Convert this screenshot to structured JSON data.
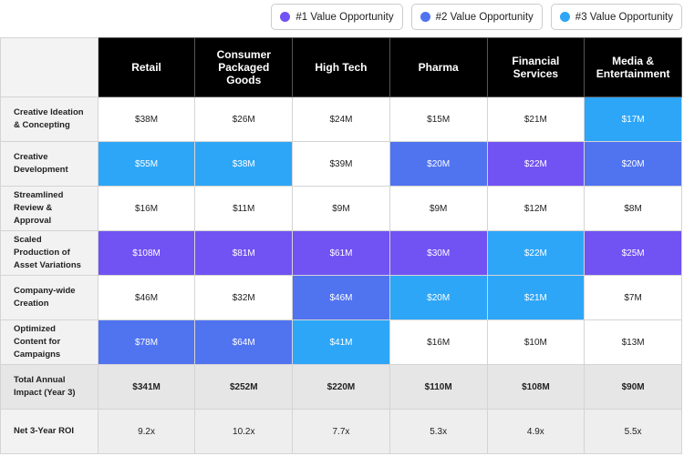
{
  "legend": [
    {
      "label": "#1 Value Opportunity",
      "color": "#7152f3"
    },
    {
      "label": "#2 Value Opportunity",
      "color": "#5073f0"
    },
    {
      "label": "#3 Value Opportunity",
      "color": "#2ea6f8"
    }
  ],
  "table": {
    "header": [
      "Retail",
      "Consumer Packaged Goods",
      "High Tech",
      "Pharma",
      "Financial Services",
      "Media & Entertainment"
    ],
    "rows": [
      {
        "label": "Creative Ideation & Concepting",
        "cells": [
          "$38M",
          "$26M",
          "$24M",
          "$15M",
          "$21M",
          "$17M"
        ],
        "fills": [
          null,
          null,
          null,
          null,
          null,
          "#2ea6f8"
        ]
      },
      {
        "label": "Creative Development",
        "cells": [
          "$55M",
          "$38M",
          "$39M",
          "$20M",
          "$22M",
          "$20M"
        ],
        "fills": [
          "#2ea6f8",
          "#2ea6f8",
          null,
          "#5073f0",
          "#7152f3",
          "#5073f0"
        ]
      },
      {
        "label": "Streamlined Review & Approval",
        "cells": [
          "$16M",
          "$11M",
          "$9M",
          "$9M",
          "$12M",
          "$8M"
        ],
        "fills": [
          null,
          null,
          null,
          null,
          null,
          null
        ]
      },
      {
        "label": "Scaled Production of Asset Variations",
        "cells": [
          "$108M",
          "$81M",
          "$61M",
          "$30M",
          "$22M",
          "$25M"
        ],
        "fills": [
          "#7152f3",
          "#7152f3",
          "#7152f3",
          "#7152f3",
          "#2ea6f8",
          "#7152f3"
        ]
      },
      {
        "label": "Company-wide Creation",
        "cells": [
          "$46M",
          "$32M",
          "$46M",
          "$20M",
          "$21M",
          "$7M"
        ],
        "fills": [
          null,
          null,
          "#5073f0",
          "#2ea6f8",
          "#2ea6f8",
          null
        ]
      },
      {
        "label": "Optimized Content for Campaigns",
        "cells": [
          "$78M",
          "$64M",
          "$41M",
          "$16M",
          "$10M",
          "$13M"
        ],
        "fills": [
          "#5073f0",
          "#5073f0",
          "#2ea6f8",
          null,
          null,
          null
        ]
      },
      {
        "label": "Total Annual Impact (Year 3)",
        "cells": [
          "$341M",
          "$252M",
          "$220M",
          "$110M",
          "$108M",
          "$90M"
        ],
        "fills": [
          "#e6e6e6",
          "#e6e6e6",
          "#e6e6e6",
          "#e6e6e6",
          "#e6e6e6",
          "#e6e6e6"
        ]
      },
      {
        "label": "Net 3-Year ROI",
        "cells": [
          "9.2x",
          "10.2x",
          "7.7x",
          "5.3x",
          "4.9x",
          "5.5x"
        ],
        "fills": [
          "#eeeeee",
          "#eeeeee",
          "#eeeeee",
          "#eeeeee",
          "#eeeeee",
          "#eeeeee"
        ]
      }
    ]
  }
}
